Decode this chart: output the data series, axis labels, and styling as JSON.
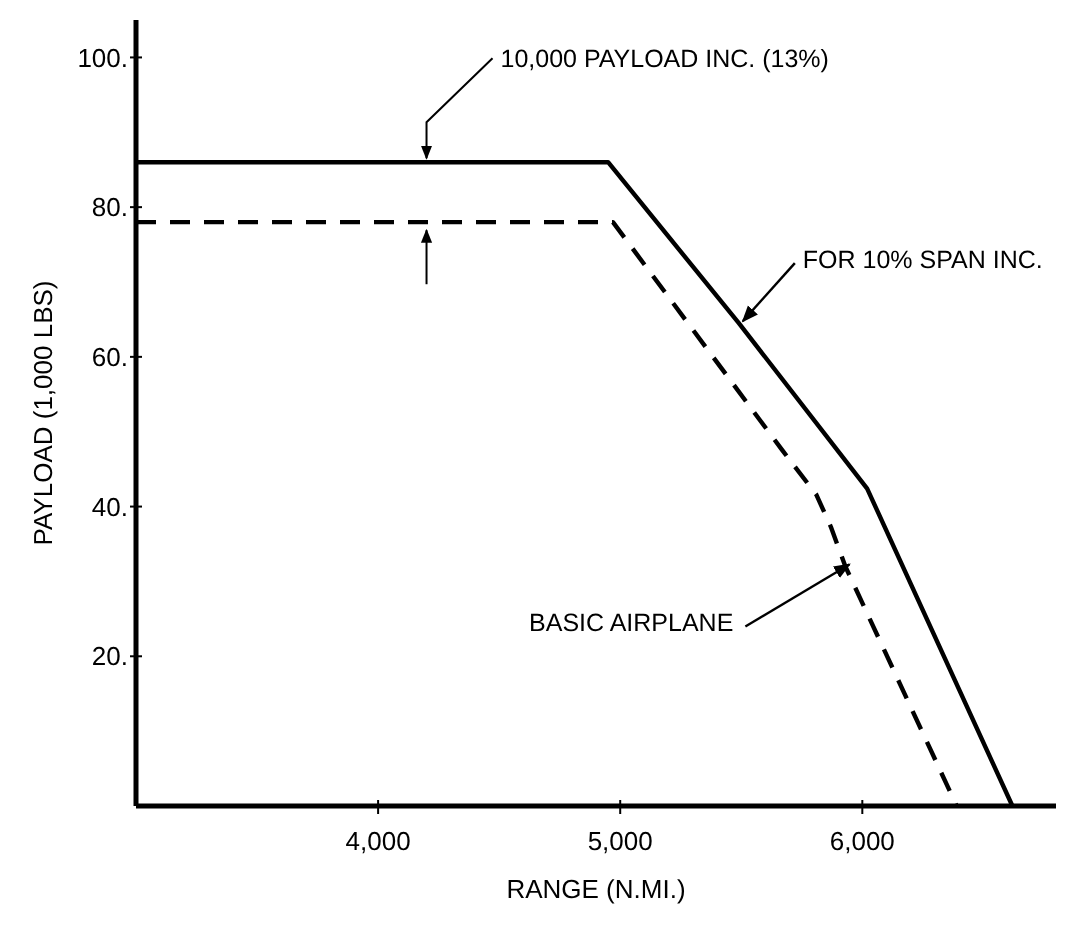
{
  "chart_data": {
    "type": "line",
    "xlabel": "RANGE (N.MI.)",
    "ylabel": "PAYLOAD (1,000 LBS)",
    "xlim": [
      3000,
      6800
    ],
    "ylim": [
      0,
      105
    ],
    "xticks": [
      {
        "value": 4000,
        "label": "4,000"
      },
      {
        "value": 5000,
        "label": "5,000"
      },
      {
        "value": 6000,
        "label": "6,000"
      }
    ],
    "yticks": [
      {
        "value": 20,
        "label": "20."
      },
      {
        "value": 40,
        "label": "40."
      },
      {
        "value": 60,
        "label": "60."
      },
      {
        "value": 80,
        "label": "80."
      },
      {
        "value": 100,
        "label": "100."
      }
    ],
    "grid": false,
    "marker": "none",
    "series": [
      {
        "color": "#000000",
        "line_style": "solid",
        "x": [
          3000,
          4950,
          5490,
          6020,
          6620
        ],
        "values": [
          86,
          86,
          64.5,
          42.4,
          0
        ]
      },
      {
        "color": "#000000",
        "line_style": "dashed",
        "x": [
          3000,
          4970,
          5670,
          5810,
          5870,
          5930,
          6390
        ],
        "values": [
          78,
          78,
          47.5,
          41.6,
          37.3,
          32,
          0
        ]
      }
    ],
    "annotations": [
      {
        "text": "10,000 PAYLOAD INC. (13%)",
        "x": 4200,
        "y": 86
      },
      {
        "text": "FOR 10% SPAN INC.",
        "x": 5490,
        "y": 64.5
      },
      {
        "text": "BASIC AIRPLANE",
        "x": 5930,
        "y": 32
      }
    ]
  }
}
